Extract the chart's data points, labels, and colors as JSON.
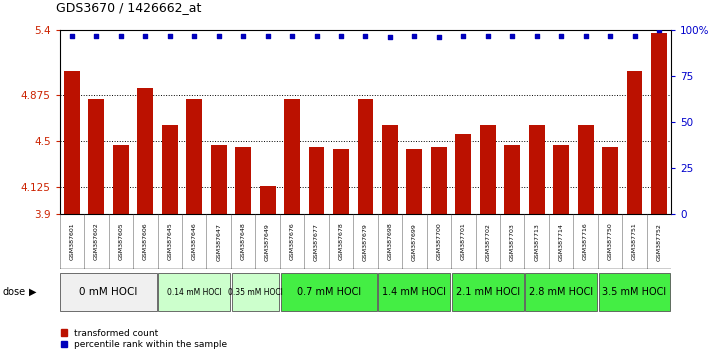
{
  "title": "GDS3670 / 1426662_at",
  "samples": [
    "GSM387601",
    "GSM387602",
    "GSM387605",
    "GSM387606",
    "GSM387645",
    "GSM387646",
    "GSM387647",
    "GSM387648",
    "GSM387649",
    "GSM387676",
    "GSM387677",
    "GSM387678",
    "GSM387679",
    "GSM387698",
    "GSM387699",
    "GSM387700",
    "GSM387701",
    "GSM387702",
    "GSM387703",
    "GSM387713",
    "GSM387714",
    "GSM387716",
    "GSM387750",
    "GSM387751",
    "GSM387752"
  ],
  "bar_values": [
    5.07,
    4.84,
    4.46,
    4.93,
    4.63,
    4.84,
    4.46,
    4.45,
    4.13,
    4.84,
    4.45,
    4.43,
    4.84,
    4.63,
    4.43,
    4.45,
    4.55,
    4.63,
    4.46,
    4.63,
    4.46,
    4.63,
    4.45,
    5.07,
    5.38
  ],
  "percentile_values": [
    97,
    97,
    97,
    97,
    97,
    97,
    97,
    97,
    97,
    97,
    97,
    97,
    97,
    96,
    97,
    96,
    97,
    97,
    97,
    97,
    97,
    97,
    97,
    97,
    100
  ],
  "ymin": 3.9,
  "ymax": 5.4,
  "yticks_left": [
    3.9,
    4.125,
    4.5,
    4.875,
    5.4
  ],
  "yticks_right": [
    0,
    25,
    50,
    75,
    100
  ],
  "bar_color": "#bb1100",
  "dot_color": "#0000bb",
  "hline_positions": [
    4.125,
    4.5,
    4.875
  ],
  "dose_groups": [
    {
      "label": "0 mM HOCl",
      "start": 0,
      "end": 4,
      "color": "#f0f0f0",
      "fontsize": 7.5
    },
    {
      "label": "0.14 mM HOCl",
      "start": 4,
      "end": 7,
      "color": "#ccffcc",
      "fontsize": 5.5
    },
    {
      "label": "0.35 mM HOCl",
      "start": 7,
      "end": 9,
      "color": "#ccffcc",
      "fontsize": 5.5
    },
    {
      "label": "0.7 mM HOCl",
      "start": 9,
      "end": 13,
      "color": "#44ee44",
      "fontsize": 7.0
    },
    {
      "label": "1.4 mM HOCl",
      "start": 13,
      "end": 16,
      "color": "#44ee44",
      "fontsize": 7.0
    },
    {
      "label": "2.1 mM HOCl",
      "start": 16,
      "end": 19,
      "color": "#44ee44",
      "fontsize": 7.0
    },
    {
      "label": "2.8 mM HOCl",
      "start": 19,
      "end": 22,
      "color": "#44ee44",
      "fontsize": 7.0
    },
    {
      "label": "3.5 mM HOCl",
      "start": 22,
      "end": 25,
      "color": "#44ee44",
      "fontsize": 7.0
    }
  ],
  "legend_labels": [
    "transformed count",
    "percentile rank within the sample"
  ],
  "legend_colors": [
    "#bb1100",
    "#0000bb"
  ],
  "sample_label_fontsize": 4.5,
  "sample_bg": "#c8c8c8",
  "left_tick_color": "#cc2200",
  "right_tick_color": "#0000cc",
  "title_fontsize": 9,
  "left_ytick_fontsize": 7.5,
  "right_ytick_fontsize": 7.5
}
